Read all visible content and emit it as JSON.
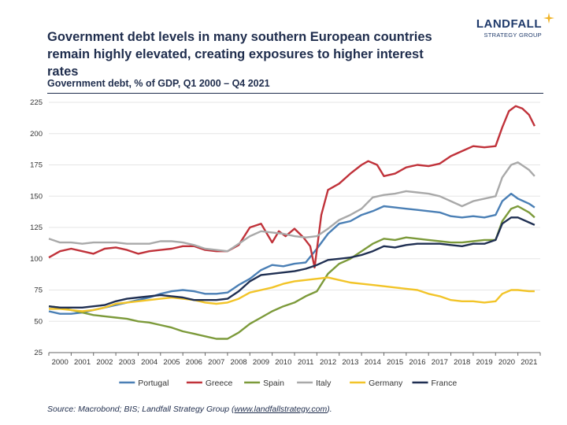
{
  "header": {
    "title": "Government debt levels in many southern European countries remain highly elevated, creating exposures to higher interest rates",
    "brand_name": "LANDFALL",
    "brand_sub": "STRATEGY GROUP"
  },
  "subtitle": "Government debt, % of GDP, Q1 2000 – Q4 2021",
  "source": {
    "prefix": "Source: Macrobond; BIS; Landfall Strategy Group (",
    "link": "www.landfallstrategy.com",
    "suffix": ")."
  },
  "colors": {
    "Portugal": "#4a7fb5",
    "Greece": "#c0323a",
    "Spain": "#7c9a3a",
    "Italy": "#a9a9a9",
    "Germany": "#f2c428",
    "France": "#1f2f52",
    "accent": "#f0b429"
  },
  "chart_data": {
    "type": "line",
    "title": "Government debt, % of GDP, Q1 2000 – Q4 2021",
    "xlabel": "",
    "ylabel": "",
    "xlim": [
      2000,
      2022
    ],
    "ylim": [
      25,
      225
    ],
    "yticks": [
      25,
      50,
      75,
      100,
      125,
      150,
      175,
      200,
      225
    ],
    "xtick_labels": [
      "2000",
      "2001",
      "2002",
      "2003",
      "2004",
      "2005",
      "2006",
      "2007",
      "2008",
      "2009",
      "2010",
      "2011",
      "2012",
      "2013",
      "2014",
      "2015",
      "2016",
      "2017",
      "2018",
      "2019",
      "2020",
      "2021"
    ],
    "grid": "horizontal",
    "legend": "bottom",
    "series": [
      {
        "name": "Portugal",
        "points": [
          [
            2000,
            58
          ],
          [
            2000.5,
            56
          ],
          [
            2001,
            56
          ],
          [
            2001.5,
            57
          ],
          [
            2002,
            59
          ],
          [
            2002.5,
            61
          ],
          [
            2003,
            63
          ],
          [
            2003.5,
            65
          ],
          [
            2004,
            67
          ],
          [
            2004.5,
            69
          ],
          [
            2005,
            72
          ],
          [
            2005.5,
            74
          ],
          [
            2006,
            75
          ],
          [
            2006.5,
            74
          ],
          [
            2007,
            72
          ],
          [
            2007.5,
            72
          ],
          [
            2008,
            73
          ],
          [
            2008.5,
            79
          ],
          [
            2009,
            84
          ],
          [
            2009.5,
            91
          ],
          [
            2010,
            95
          ],
          [
            2010.5,
            94
          ],
          [
            2011,
            96
          ],
          [
            2011.5,
            97
          ],
          [
            2012,
            108
          ],
          [
            2012.5,
            120
          ],
          [
            2013,
            128
          ],
          [
            2013.5,
            130
          ],
          [
            2014,
            135
          ],
          [
            2014.5,
            138
          ],
          [
            2015,
            142
          ],
          [
            2015.5,
            141
          ],
          [
            2016,
            140
          ],
          [
            2016.5,
            139
          ],
          [
            2017,
            138
          ],
          [
            2017.5,
            137
          ],
          [
            2018,
            134
          ],
          [
            2018.5,
            133
          ],
          [
            2019,
            134
          ],
          [
            2019.5,
            133
          ],
          [
            2020,
            135
          ],
          [
            2020.3,
            146
          ],
          [
            2020.7,
            152
          ],
          [
            2021,
            148
          ],
          [
            2021.5,
            144
          ],
          [
            2021.75,
            141
          ]
        ]
      },
      {
        "name": "Greece",
        "points": [
          [
            2000,
            101
          ],
          [
            2000.5,
            106
          ],
          [
            2001,
            108
          ],
          [
            2001.5,
            106
          ],
          [
            2002,
            104
          ],
          [
            2002.5,
            108
          ],
          [
            2003,
            109
          ],
          [
            2003.5,
            107
          ],
          [
            2004,
            104
          ],
          [
            2004.5,
            106
          ],
          [
            2005,
            107
          ],
          [
            2005.5,
            108
          ],
          [
            2006,
            110
          ],
          [
            2006.5,
            110
          ],
          [
            2007,
            107
          ],
          [
            2007.5,
            106
          ],
          [
            2008,
            106
          ],
          [
            2008.5,
            111
          ],
          [
            2009,
            125
          ],
          [
            2009.5,
            128
          ],
          [
            2010,
            113
          ],
          [
            2010.3,
            122
          ],
          [
            2010.6,
            118
          ],
          [
            2011,
            124
          ],
          [
            2011.4,
            117
          ],
          [
            2011.7,
            110
          ],
          [
            2011.9,
            93
          ],
          [
            2012.2,
            135
          ],
          [
            2012.5,
            155
          ],
          [
            2013,
            160
          ],
          [
            2013.5,
            168
          ],
          [
            2014,
            175
          ],
          [
            2014.3,
            178
          ],
          [
            2014.7,
            175
          ],
          [
            2015,
            166
          ],
          [
            2015.5,
            168
          ],
          [
            2016,
            173
          ],
          [
            2016.5,
            175
          ],
          [
            2017,
            174
          ],
          [
            2017.5,
            176
          ],
          [
            2018,
            182
          ],
          [
            2018.5,
            186
          ],
          [
            2019,
            190
          ],
          [
            2019.5,
            189
          ],
          [
            2020,
            190
          ],
          [
            2020.3,
            205
          ],
          [
            2020.6,
            218
          ],
          [
            2020.9,
            222
          ],
          [
            2021.2,
            220
          ],
          [
            2021.5,
            215
          ],
          [
            2021.75,
            206
          ]
        ]
      },
      {
        "name": "Spain",
        "points": [
          [
            2000,
            62
          ],
          [
            2000.5,
            61
          ],
          [
            2001,
            59
          ],
          [
            2001.5,
            57
          ],
          [
            2002,
            55
          ],
          [
            2002.5,
            54
          ],
          [
            2003,
            53
          ],
          [
            2003.5,
            52
          ],
          [
            2004,
            50
          ],
          [
            2004.5,
            49
          ],
          [
            2005,
            47
          ],
          [
            2005.5,
            45
          ],
          [
            2006,
            42
          ],
          [
            2006.5,
            40
          ],
          [
            2007,
            38
          ],
          [
            2007.5,
            36
          ],
          [
            2008,
            36
          ],
          [
            2008.5,
            41
          ],
          [
            2009,
            48
          ],
          [
            2009.5,
            53
          ],
          [
            2010,
            58
          ],
          [
            2010.5,
            62
          ],
          [
            2011,
            65
          ],
          [
            2011.5,
            70
          ],
          [
            2012,
            74
          ],
          [
            2012.5,
            88
          ],
          [
            2013,
            96
          ],
          [
            2013.5,
            100
          ],
          [
            2014,
            106
          ],
          [
            2014.5,
            112
          ],
          [
            2015,
            116
          ],
          [
            2015.5,
            115
          ],
          [
            2016,
            117
          ],
          [
            2016.5,
            116
          ],
          [
            2017,
            115
          ],
          [
            2017.5,
            114
          ],
          [
            2018,
            113
          ],
          [
            2018.5,
            113
          ],
          [
            2019,
            114
          ],
          [
            2019.5,
            115
          ],
          [
            2020,
            115
          ],
          [
            2020.3,
            130
          ],
          [
            2020.7,
            140
          ],
          [
            2021,
            142
          ],
          [
            2021.5,
            137
          ],
          [
            2021.75,
            133
          ]
        ]
      },
      {
        "name": "Italy",
        "points": [
          [
            2000,
            116
          ],
          [
            2000.5,
            113
          ],
          [
            2001,
            113
          ],
          [
            2001.5,
            112
          ],
          [
            2002,
            113
          ],
          [
            2002.5,
            113
          ],
          [
            2003,
            113
          ],
          [
            2003.5,
            112
          ],
          [
            2004,
            112
          ],
          [
            2004.5,
            112
          ],
          [
            2005,
            114
          ],
          [
            2005.5,
            114
          ],
          [
            2006,
            113
          ],
          [
            2006.5,
            111
          ],
          [
            2007,
            108
          ],
          [
            2007.5,
            107
          ],
          [
            2008,
            106
          ],
          [
            2008.5,
            112
          ],
          [
            2009,
            118
          ],
          [
            2009.5,
            122
          ],
          [
            2010,
            121
          ],
          [
            2010.5,
            120
          ],
          [
            2011,
            118
          ],
          [
            2011.5,
            117
          ],
          [
            2012,
            118
          ],
          [
            2012.5,
            124
          ],
          [
            2013,
            131
          ],
          [
            2013.5,
            135
          ],
          [
            2014,
            140
          ],
          [
            2014.5,
            149
          ],
          [
            2015,
            151
          ],
          [
            2015.5,
            152
          ],
          [
            2016,
            154
          ],
          [
            2016.5,
            153
          ],
          [
            2017,
            152
          ],
          [
            2017.5,
            150
          ],
          [
            2018,
            146
          ],
          [
            2018.5,
            142
          ],
          [
            2019,
            146
          ],
          [
            2019.5,
            148
          ],
          [
            2020,
            150
          ],
          [
            2020.3,
            165
          ],
          [
            2020.7,
            175
          ],
          [
            2021,
            177
          ],
          [
            2021.5,
            171
          ],
          [
            2021.75,
            166
          ]
        ]
      },
      {
        "name": "Germany",
        "points": [
          [
            2000,
            60
          ],
          [
            2000.5,
            60
          ],
          [
            2001,
            59
          ],
          [
            2001.5,
            58
          ],
          [
            2002,
            59
          ],
          [
            2002.5,
            61
          ],
          [
            2003,
            64
          ],
          [
            2003.5,
            65
          ],
          [
            2004,
            66
          ],
          [
            2004.5,
            67
          ],
          [
            2005,
            68
          ],
          [
            2005.5,
            69
          ],
          [
            2006,
            68
          ],
          [
            2006.5,
            67
          ],
          [
            2007,
            65
          ],
          [
            2007.5,
            64
          ],
          [
            2008,
            65
          ],
          [
            2008.5,
            68
          ],
          [
            2009,
            73
          ],
          [
            2009.5,
            75
          ],
          [
            2010,
            77
          ],
          [
            2010.5,
            80
          ],
          [
            2011,
            82
          ],
          [
            2011.5,
            83
          ],
          [
            2012,
            84
          ],
          [
            2012.5,
            85
          ],
          [
            2013,
            83
          ],
          [
            2013.5,
            81
          ],
          [
            2014,
            80
          ],
          [
            2014.5,
            79
          ],
          [
            2015,
            78
          ],
          [
            2015.5,
            77
          ],
          [
            2016,
            76
          ],
          [
            2016.5,
            75
          ],
          [
            2017,
            72
          ],
          [
            2017.5,
            70
          ],
          [
            2018,
            67
          ],
          [
            2018.5,
            66
          ],
          [
            2019,
            66
          ],
          [
            2019.5,
            65
          ],
          [
            2020,
            66
          ],
          [
            2020.3,
            72
          ],
          [
            2020.7,
            75
          ],
          [
            2021,
            75
          ],
          [
            2021.5,
            74
          ],
          [
            2021.75,
            74
          ]
        ]
      },
      {
        "name": "France",
        "points": [
          [
            2000,
            62
          ],
          [
            2000.5,
            61
          ],
          [
            2001,
            61
          ],
          [
            2001.5,
            61
          ],
          [
            2002,
            62
          ],
          [
            2002.5,
            63
          ],
          [
            2003,
            66
          ],
          [
            2003.5,
            68
          ],
          [
            2004,
            69
          ],
          [
            2004.5,
            70
          ],
          [
            2005,
            71
          ],
          [
            2005.5,
            70
          ],
          [
            2006,
            69
          ],
          [
            2006.5,
            67
          ],
          [
            2007,
            67
          ],
          [
            2007.5,
            67
          ],
          [
            2008,
            68
          ],
          [
            2008.5,
            74
          ],
          [
            2009,
            82
          ],
          [
            2009.5,
            87
          ],
          [
            2010,
            88
          ],
          [
            2010.5,
            89
          ],
          [
            2011,
            90
          ],
          [
            2011.5,
            92
          ],
          [
            2012,
            95
          ],
          [
            2012.5,
            99
          ],
          [
            2013,
            100
          ],
          [
            2013.5,
            101
          ],
          [
            2014,
            103
          ],
          [
            2014.5,
            106
          ],
          [
            2015,
            110
          ],
          [
            2015.5,
            109
          ],
          [
            2016,
            111
          ],
          [
            2016.5,
            112
          ],
          [
            2017,
            112
          ],
          [
            2017.5,
            112
          ],
          [
            2018,
            111
          ],
          [
            2018.5,
            110
          ],
          [
            2019,
            112
          ],
          [
            2019.5,
            112
          ],
          [
            2020,
            115
          ],
          [
            2020.3,
            128
          ],
          [
            2020.7,
            133
          ],
          [
            2021,
            133
          ],
          [
            2021.5,
            129
          ],
          [
            2021.75,
            127
          ]
        ]
      }
    ]
  }
}
